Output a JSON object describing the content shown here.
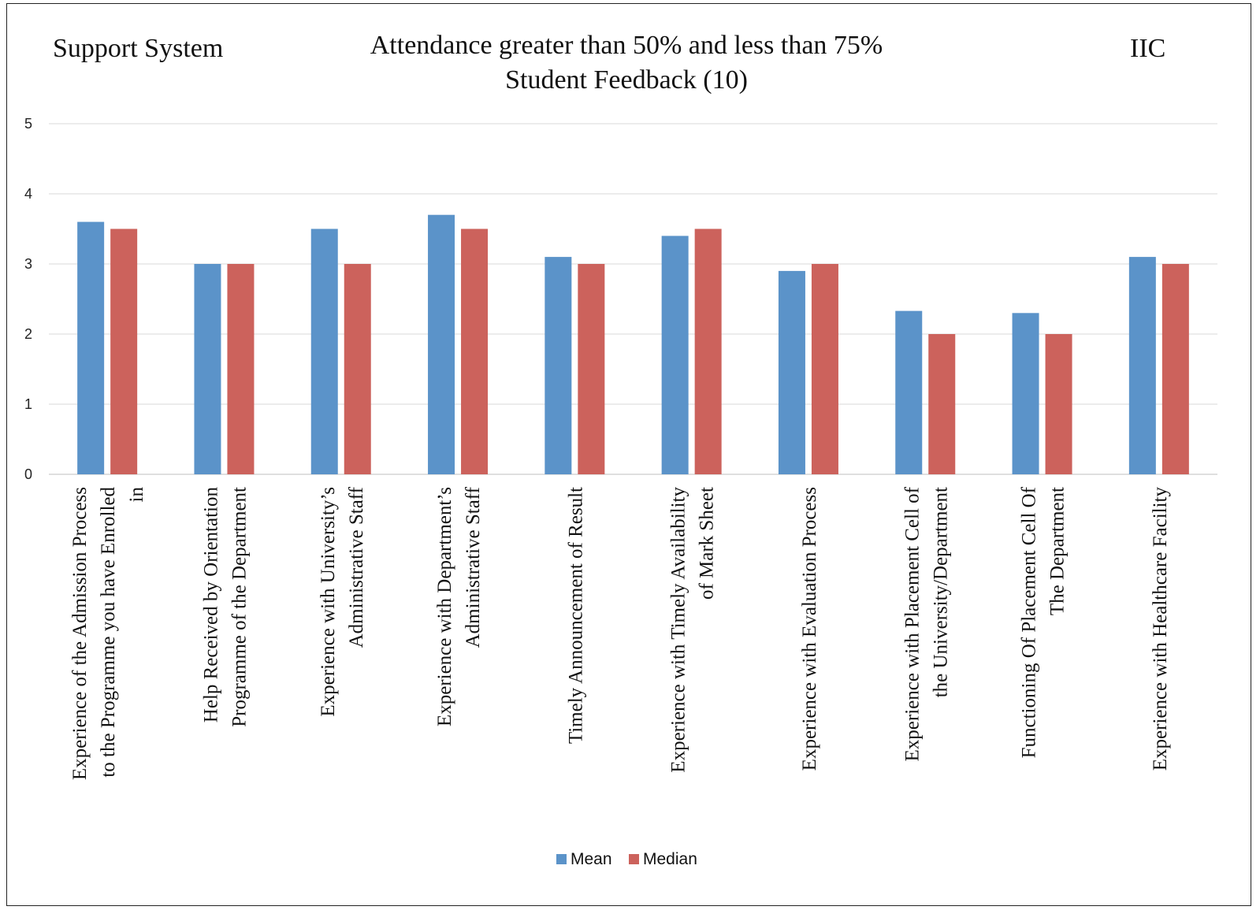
{
  "header": {
    "left_label": "Support System",
    "right_label": "IIC",
    "title_line1": "Attendance greater than 50% and less than 75%",
    "title_line2": "Student Feedback (10)"
  },
  "chart_data": {
    "type": "bar",
    "title": "Attendance greater than 50% and less than 75% Student Feedback (10)",
    "xlabel": "",
    "ylabel": "",
    "ylim": [
      0,
      5
    ],
    "yticks": [
      0,
      1,
      2,
      3,
      4,
      5
    ],
    "grid": true,
    "legend_position": "bottom",
    "categories": [
      [
        "Experience of the Admission Process",
        "to the Programme you have Enrolled",
        "in"
      ],
      [
        "Help Received by Orientation",
        "Programme of the Department"
      ],
      [
        "Experience with University’s",
        "Administrative Staff"
      ],
      [
        "Experience with Department’s",
        "Administrative Staff"
      ],
      [
        "Timely Announcement of Result"
      ],
      [
        "Experience with Timely Availability",
        "of Mark Sheet"
      ],
      [
        "Experience with Evaluation Process"
      ],
      [
        "Experience with Placement Cell of",
        "the University/Department"
      ],
      [
        "Functioning Of Placement Cell Of",
        "The Department"
      ],
      [
        "Experience with Healthcare Facility"
      ]
    ],
    "series": [
      {
        "name": "Mean",
        "color": "#5b93c9",
        "values": [
          3.6,
          3.0,
          3.5,
          3.7,
          3.1,
          3.4,
          2.9,
          2.33,
          2.3,
          3.1
        ]
      },
      {
        "name": "Median",
        "color": "#cc625c",
        "values": [
          3.5,
          3.0,
          3.0,
          3.5,
          3.0,
          3.5,
          3.0,
          2.0,
          2.0,
          3.0
        ]
      }
    ]
  }
}
